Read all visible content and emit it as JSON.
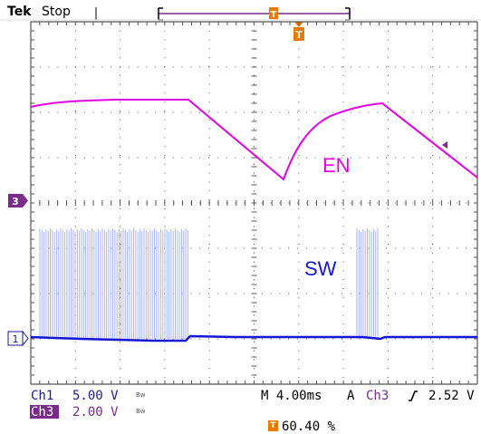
{
  "header": {
    "brand": "Tek",
    "status": "Stop"
  },
  "channels": {
    "ch3_marker": "3",
    "ch1_marker": "1"
  },
  "waveforms": {
    "en_label": "EN",
    "sw_label": "SW",
    "en_color": "#e000e0",
    "sw_color": "#1515d8",
    "sw_burst_color": "#aab4f0"
  },
  "readouts": {
    "ch1_name": "Ch1",
    "ch1_scale": "5.00 V",
    "ch1_bw": "Bw",
    "ch3_name": "Ch3",
    "ch3_scale": "2.00 V",
    "ch3_bw": "Bw",
    "timebase": "M 4.00ms",
    "trigger_label": "A",
    "trigger_channel": "Ch3",
    "trigger_level": "2.52 V",
    "trigger_position": "60.40 %"
  },
  "colors": {
    "grid": "#555555",
    "trigger": "#e87a00",
    "ch3": "#7a2a8a",
    "ch1_marker_outline": "#1a1a8a"
  },
  "icons": {
    "trigger_marker": "trigger-T-icon",
    "rising_edge": "rising-edge-icon",
    "waveform_end_arrow": "left-arrow-icon"
  }
}
